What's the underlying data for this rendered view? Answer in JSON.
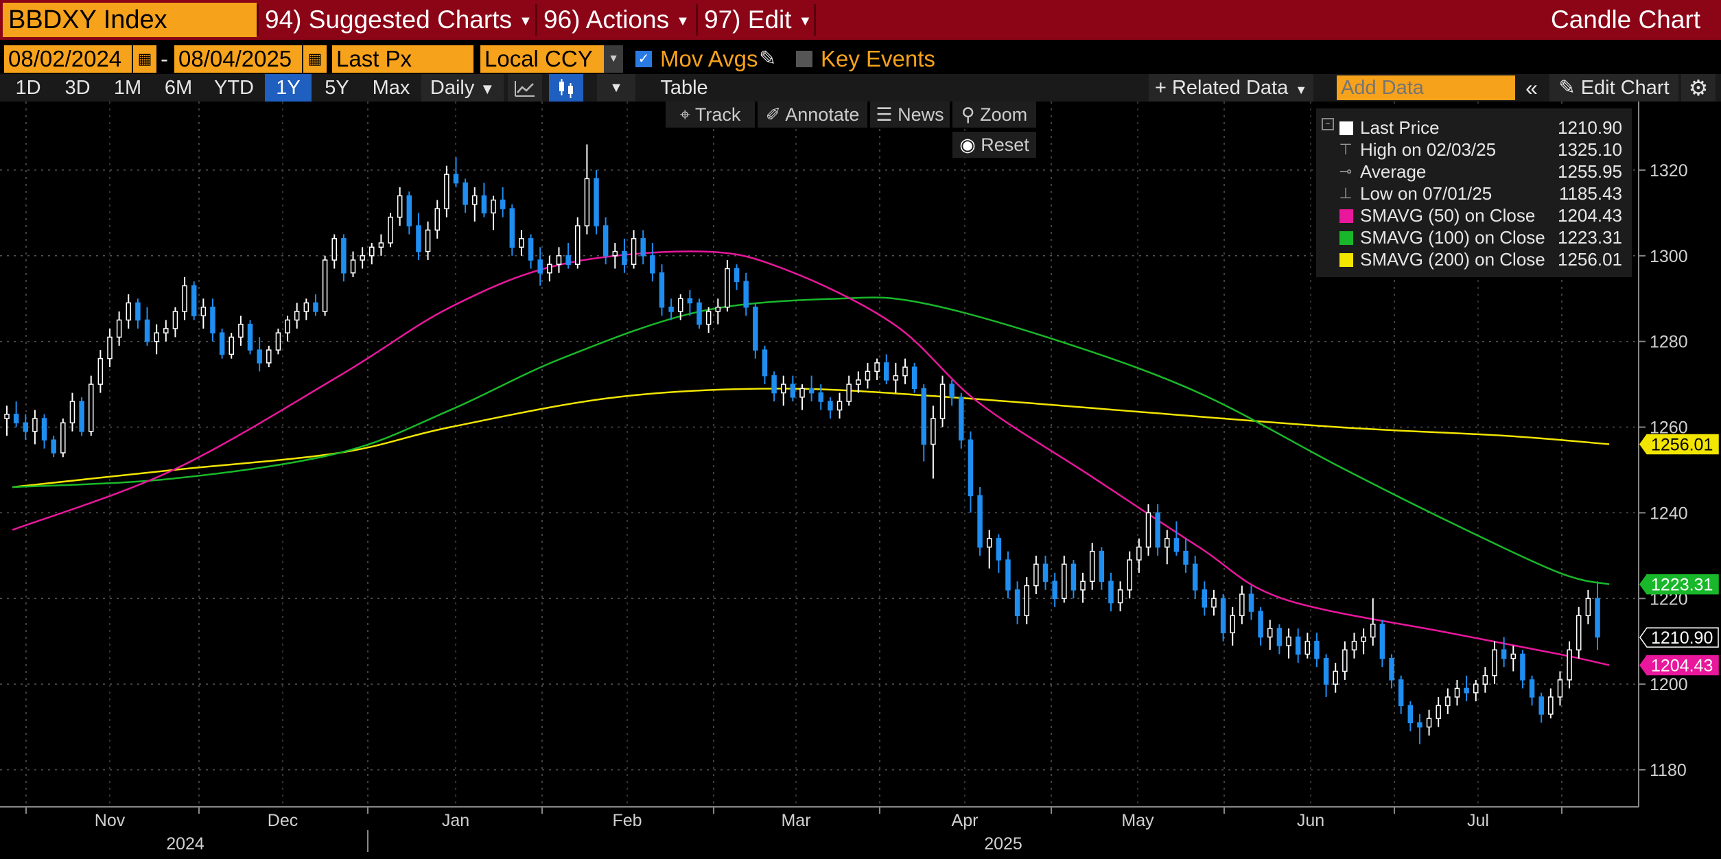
{
  "header": {
    "ticker": "BBDXY Index",
    "menu": [
      {
        "num": "94)",
        "label": "Suggested Charts"
      },
      {
        "num": "96)",
        "label": "Actions"
      },
      {
        "num": "97)",
        "label": "Edit"
      }
    ],
    "chart_type_label": "Candle Chart"
  },
  "controls": {
    "start_date": "08/02/2024",
    "date_sep": "-",
    "end_date": "08/04/2025",
    "field": "Last Px",
    "currency": "Local CCY",
    "mov_avgs_label": "Mov Avgs",
    "key_events_label": "Key Events"
  },
  "periods": [
    "1D",
    "3D",
    "1M",
    "6M",
    "YTD",
    "1Y",
    "5Y",
    "Max"
  ],
  "active_period": "1Y",
  "frequency": "Daily",
  "table_label": "Table",
  "related_data_label": "Related Data",
  "add_data_placeholder": "Add Data",
  "edit_chart_label": "Edit Chart",
  "tools": {
    "track": "Track",
    "annotate": "Annotate",
    "news": "News",
    "zoom": "Zoom",
    "reset": "Reset"
  },
  "legend": [
    {
      "key": "Last Price",
      "value": "1210.90",
      "color": "#ffffff",
      "kind": "swatch"
    },
    {
      "key": "High on 02/03/25",
      "value": "1325.10",
      "kind": "high-icon"
    },
    {
      "key": "Average",
      "value": "1255.95",
      "kind": "avg-icon"
    },
    {
      "key": "Low on 07/01/25",
      "value": "1185.43",
      "kind": "low-icon"
    },
    {
      "key": "SMAVG (50)  on Close",
      "value": "1204.43",
      "color": "#e8179b",
      "kind": "swatch"
    },
    {
      "key": "SMAVG (100)  on Close",
      "value": "1223.31",
      "color": "#19b82a",
      "kind": "swatch"
    },
    {
      "key": "SMAVG (200)  on Close",
      "value": "1256.01",
      "color": "#f2e500",
      "kind": "swatch"
    }
  ],
  "chart_data": {
    "type": "candlestick",
    "title": "",
    "xlabel": "",
    "ylabel": "",
    "ylim": [
      1172,
      1336
    ],
    "y_ticks": [
      1180,
      1200,
      1220,
      1240,
      1260,
      1280,
      1300,
      1320
    ],
    "x_month_labels": [
      "Nov",
      "Dec",
      "Jan",
      "Feb",
      "Mar",
      "Apr",
      "May",
      "Jun",
      "Jul"
    ],
    "x_year_labels": [
      "2024",
      "2025"
    ],
    "grid": true,
    "colors": {
      "up": "#ffffff",
      "down": "#1f8ef0",
      "sma50": "#e8179b",
      "sma100": "#19b82a",
      "sma200": "#f2e500"
    },
    "candles": [
      [
        1262,
        1265,
        1258,
        1263
      ],
      [
        1263,
        1266,
        1260,
        1261
      ],
      [
        1261,
        1263,
        1257,
        1259
      ],
      [
        1259,
        1264,
        1256,
        1262
      ],
      [
        1262,
        1263,
        1255,
        1257
      ],
      [
        1257,
        1258,
        1253,
        1254
      ],
      [
        1254,
        1262,
        1253,
        1261
      ],
      [
        1261,
        1268,
        1259,
        1266
      ],
      [
        1266,
        1267,
        1258,
        1259
      ],
      [
        1259,
        1272,
        1258,
        1270
      ],
      [
        1270,
        1278,
        1268,
        1276
      ],
      [
        1276,
        1283,
        1274,
        1281
      ],
      [
        1281,
        1287,
        1279,
        1285
      ],
      [
        1285,
        1291,
        1283,
        1289
      ],
      [
        1289,
        1290,
        1283,
        1285
      ],
      [
        1285,
        1288,
        1279,
        1280
      ],
      [
        1280,
        1284,
        1277,
        1282
      ],
      [
        1282,
        1285,
        1280,
        1283
      ],
      [
        1283,
        1288,
        1281,
        1287
      ],
      [
        1287,
        1295,
        1285,
        1293
      ],
      [
        1293,
        1294,
        1285,
        1286
      ],
      [
        1286,
        1290,
        1283,
        1288
      ],
      [
        1288,
        1290,
        1280,
        1282
      ],
      [
        1282,
        1283,
        1276,
        1277
      ],
      [
        1277,
        1282,
        1276,
        1281
      ],
      [
        1281,
        1286,
        1279,
        1284
      ],
      [
        1284,
        1285,
        1277,
        1278
      ],
      [
        1278,
        1281,
        1273,
        1275
      ],
      [
        1275,
        1279,
        1274,
        1278
      ],
      [
        1278,
        1283,
        1277,
        1282
      ],
      [
        1282,
        1286,
        1280,
        1285
      ],
      [
        1285,
        1289,
        1283,
        1287
      ],
      [
        1287,
        1290,
        1285,
        1289
      ],
      [
        1289,
        1291,
        1286,
        1287
      ],
      [
        1287,
        1300,
        1286,
        1299
      ],
      [
        1299,
        1305,
        1297,
        1304
      ],
      [
        1304,
        1305,
        1294,
        1296
      ],
      [
        1296,
        1301,
        1295,
        1299
      ],
      [
        1299,
        1302,
        1297,
        1300
      ],
      [
        1300,
        1303,
        1298,
        1302
      ],
      [
        1302,
        1305,
        1300,
        1303
      ],
      [
        1303,
        1310,
        1302,
        1309
      ],
      [
        1309,
        1316,
        1307,
        1314
      ],
      [
        1314,
        1315,
        1305,
        1307
      ],
      [
        1307,
        1310,
        1299,
        1301
      ],
      [
        1301,
        1308,
        1299,
        1306
      ],
      [
        1306,
        1313,
        1304,
        1311
      ],
      [
        1311,
        1321,
        1309,
        1319
      ],
      [
        1319,
        1323,
        1316,
        1317
      ],
      [
        1317,
        1318,
        1310,
        1312
      ],
      [
        1312,
        1316,
        1308,
        1314
      ],
      [
        1314,
        1317,
        1309,
        1310
      ],
      [
        1310,
        1314,
        1306,
        1313
      ],
      [
        1313,
        1316,
        1309,
        1311
      ],
      [
        1311,
        1312,
        1300,
        1302
      ],
      [
        1302,
        1306,
        1300,
        1304
      ],
      [
        1304,
        1305,
        1297,
        1299
      ],
      [
        1299,
        1302,
        1293,
        1296
      ],
      [
        1296,
        1300,
        1294,
        1298
      ],
      [
        1298,
        1302,
        1296,
        1300
      ],
      [
        1300,
        1303,
        1297,
        1298
      ],
      [
        1298,
        1309,
        1297,
        1307
      ],
      [
        1307,
        1326,
        1305,
        1318
      ],
      [
        1318,
        1320,
        1305,
        1307
      ],
      [
        1307,
        1309,
        1298,
        1300
      ],
      [
        1300,
        1303,
        1297,
        1301
      ],
      [
        1301,
        1304,
        1296,
        1298
      ],
      [
        1298,
        1306,
        1297,
        1304
      ],
      [
        1304,
        1306,
        1298,
        1300
      ],
      [
        1300,
        1303,
        1294,
        1296
      ],
      [
        1296,
        1298,
        1286,
        1288
      ],
      [
        1288,
        1290,
        1285,
        1287
      ],
      [
        1287,
        1291,
        1285,
        1290
      ],
      [
        1290,
        1292,
        1286,
        1289
      ],
      [
        1289,
        1290,
        1283,
        1284
      ],
      [
        1284,
        1288,
        1282,
        1287
      ],
      [
        1287,
        1290,
        1284,
        1288
      ],
      [
        1288,
        1299,
        1287,
        1297
      ],
      [
        1297,
        1298,
        1292,
        1294
      ],
      [
        1294,
        1296,
        1286,
        1288
      ],
      [
        1288,
        1289,
        1276,
        1278
      ],
      [
        1278,
        1279,
        1270,
        1272
      ],
      [
        1272,
        1273,
        1266,
        1268
      ],
      [
        1268,
        1272,
        1265,
        1270
      ],
      [
        1270,
        1272,
        1266,
        1267
      ],
      [
        1267,
        1270,
        1264,
        1269
      ],
      [
        1269,
        1272,
        1266,
        1268
      ],
      [
        1268,
        1270,
        1264,
        1266
      ],
      [
        1266,
        1267,
        1262,
        1264
      ],
      [
        1264,
        1268,
        1262,
        1266
      ],
      [
        1266,
        1272,
        1265,
        1270
      ],
      [
        1270,
        1273,
        1268,
        1271
      ],
      [
        1271,
        1275,
        1269,
        1273
      ],
      [
        1273,
        1276,
        1271,
        1275
      ],
      [
        1275,
        1277,
        1270,
        1271
      ],
      [
        1271,
        1275,
        1268,
        1272
      ],
      [
        1272,
        1276,
        1270,
        1274
      ],
      [
        1274,
        1275,
        1268,
        1269
      ],
      [
        1269,
        1270,
        1252,
        1256
      ],
      [
        1256,
        1265,
        1248,
        1262
      ],
      [
        1262,
        1272,
        1260,
        1270
      ],
      [
        1270,
        1271,
        1265,
        1267
      ],
      [
        1267,
        1268,
        1255,
        1257
      ],
      [
        1257,
        1259,
        1240,
        1244
      ],
      [
        1244,
        1246,
        1230,
        1232
      ],
      [
        1232,
        1236,
        1227,
        1234
      ],
      [
        1234,
        1235,
        1226,
        1229
      ],
      [
        1229,
        1231,
        1220,
        1222
      ],
      [
        1222,
        1224,
        1214,
        1216
      ],
      [
        1216,
        1225,
        1214,
        1223
      ],
      [
        1223,
        1230,
        1221,
        1228
      ],
      [
        1228,
        1230,
        1222,
        1224
      ],
      [
        1224,
        1226,
        1218,
        1220
      ],
      [
        1220,
        1230,
        1219,
        1228
      ],
      [
        1228,
        1229,
        1220,
        1222
      ],
      [
        1222,
        1226,
        1219,
        1224
      ],
      [
        1224,
        1233,
        1222,
        1231
      ],
      [
        1231,
        1232,
        1222,
        1224
      ],
      [
        1224,
        1226,
        1217,
        1219
      ],
      [
        1219,
        1224,
        1217,
        1222
      ],
      [
        1222,
        1231,
        1220,
        1229
      ],
      [
        1229,
        1234,
        1226,
        1232
      ],
      [
        1232,
        1242,
        1230,
        1240
      ],
      [
        1240,
        1242,
        1230,
        1232
      ],
      [
        1232,
        1236,
        1228,
        1234
      ],
      [
        1234,
        1238,
        1230,
        1231
      ],
      [
        1231,
        1234,
        1226,
        1228
      ],
      [
        1228,
        1230,
        1220,
        1222
      ],
      [
        1222,
        1224,
        1216,
        1218
      ],
      [
        1218,
        1222,
        1216,
        1220
      ],
      [
        1220,
        1221,
        1210,
        1212
      ],
      [
        1212,
        1218,
        1209,
        1216
      ],
      [
        1216,
        1223,
        1214,
        1221
      ],
      [
        1221,
        1223,
        1215,
        1217
      ],
      [
        1217,
        1218,
        1209,
        1211
      ],
      [
        1211,
        1215,
        1208,
        1213
      ],
      [
        1213,
        1214,
        1207,
        1209
      ],
      [
        1209,
        1213,
        1206,
        1211
      ],
      [
        1211,
        1213,
        1205,
        1207
      ],
      [
        1207,
        1212,
        1206,
        1210
      ],
      [
        1210,
        1212,
        1204,
        1206
      ],
      [
        1206,
        1207,
        1197,
        1200
      ],
      [
        1200,
        1205,
        1198,
        1203
      ],
      [
        1203,
        1210,
        1201,
        1208
      ],
      [
        1208,
        1212,
        1206,
        1210
      ],
      [
        1210,
        1213,
        1207,
        1211
      ],
      [
        1211,
        1220,
        1209,
        1214
      ],
      [
        1214,
        1215,
        1204,
        1206
      ],
      [
        1206,
        1207,
        1199,
        1201
      ],
      [
        1201,
        1202,
        1193,
        1195
      ],
      [
        1195,
        1196,
        1189,
        1191
      ],
      [
        1191,
        1193,
        1186,
        1190
      ],
      [
        1190,
        1194,
        1188,
        1192
      ],
      [
        1192,
        1197,
        1190,
        1195
      ],
      [
        1195,
        1199,
        1193,
        1197
      ],
      [
        1197,
        1201,
        1195,
        1199
      ],
      [
        1199,
        1202,
        1196,
        1198
      ],
      [
        1198,
        1201,
        1196,
        1200
      ],
      [
        1200,
        1204,
        1198,
        1202
      ],
      [
        1202,
        1210,
        1200,
        1208
      ],
      [
        1208,
        1211,
        1204,
        1206
      ],
      [
        1206,
        1209,
        1203,
        1207
      ],
      [
        1207,
        1208,
        1199,
        1201
      ],
      [
        1201,
        1202,
        1195,
        1197
      ],
      [
        1197,
        1198,
        1191,
        1193
      ],
      [
        1193,
        1199,
        1192,
        1197
      ],
      [
        1197,
        1203,
        1195,
        1201
      ],
      [
        1201,
        1210,
        1199,
        1208
      ],
      [
        1208,
        1218,
        1206,
        1216
      ],
      [
        1216,
        1222,
        1214,
        1220
      ],
      [
        1220,
        1224,
        1208,
        1211
      ]
    ],
    "sma50_path": [
      [
        1,
        1236
      ],
      [
        30,
        1250
      ],
      [
        60,
        1272
      ],
      [
        80,
        1288
      ],
      [
        100,
        1298
      ],
      [
        125,
        1301
      ],
      [
        140,
        1297
      ],
      [
        160,
        1284
      ],
      [
        175,
        1266
      ],
      [
        195,
        1249
      ],
      [
        215,
        1232
      ],
      [
        230,
        1220
      ],
      [
        260,
        1212
      ],
      [
        280,
        1207
      ],
      [
        289,
        1204.43
      ]
    ],
    "sma100_path": [
      [
        1,
        1246
      ],
      [
        30,
        1248
      ],
      [
        60,
        1254
      ],
      [
        80,
        1264
      ],
      [
        100,
        1276
      ],
      [
        125,
        1287
      ],
      [
        150,
        1290
      ],
      [
        165,
        1289
      ],
      [
        190,
        1280
      ],
      [
        215,
        1268
      ],
      [
        240,
        1251
      ],
      [
        260,
        1238
      ],
      [
        280,
        1226
      ],
      [
        289,
        1223.31
      ]
    ],
    "sma200_path": [
      [
        1,
        1246
      ],
      [
        30,
        1250
      ],
      [
        60,
        1254
      ],
      [
        80,
        1260
      ],
      [
        110,
        1267
      ],
      [
        140,
        1269
      ],
      [
        170,
        1267
      ],
      [
        200,
        1264
      ],
      [
        240,
        1260
      ],
      [
        270,
        1258
      ],
      [
        289,
        1256.01
      ]
    ],
    "badges": [
      {
        "value": "1256.01",
        "y": 1256.01,
        "bg": "#f2e500",
        "fg": "#000000"
      },
      {
        "value": "1223.31",
        "y": 1223.31,
        "bg": "#19b82a",
        "fg": "#ffffff"
      },
      {
        "value": "1210.90",
        "y": 1210.9,
        "bg": "#000000",
        "fg": "#ffffff",
        "border": "#ffffff"
      },
      {
        "value": "1204.43",
        "y": 1204.43,
        "bg": "#e8179b",
        "fg": "#ffffff"
      }
    ]
  }
}
